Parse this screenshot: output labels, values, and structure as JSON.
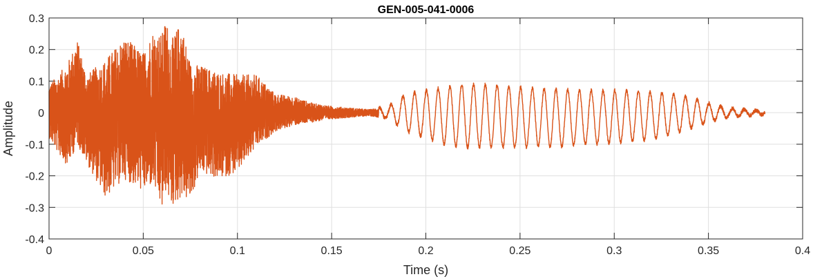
{
  "chart_data": {
    "type": "line",
    "title": "GEN-005-041-0006",
    "xlabel": "Time (s)",
    "ylabel": "Amplitude",
    "xlim": [
      0,
      0.4
    ],
    "ylim": [
      -0.4,
      0.3
    ],
    "xticks": [
      0,
      0.05,
      0.1,
      0.15,
      0.2,
      0.25,
      0.3,
      0.35,
      0.4
    ],
    "xtick_labels": [
      "0",
      "0.05",
      "0.1",
      "0.15",
      "0.2",
      "0.25",
      "0.3",
      "0.35",
      "0.4"
    ],
    "yticks": [
      -0.4,
      -0.3,
      -0.2,
      -0.1,
      0,
      0.1,
      0.2,
      0.3
    ],
    "ytick_labels": [
      "-0.4",
      "-0.3",
      "-0.2",
      "-0.1",
      "0",
      "0.1",
      "0.2",
      "0.3"
    ],
    "grid": true,
    "series": [
      {
        "color": "#d95319",
        "duration_s": 0.38,
        "envelope": {
          "t": [
            0,
            0.005,
            0.01,
            0.015,
            0.02,
            0.03,
            0.04,
            0.05,
            0.055,
            0.06,
            0.062,
            0.065,
            0.07,
            0.075,
            0.08,
            0.09,
            0.1,
            0.11,
            0.12,
            0.13,
            0.14,
            0.15,
            0.16,
            0.17,
            0.18,
            0.185,
            0.19,
            0.2,
            0.21,
            0.22,
            0.23,
            0.24,
            0.25,
            0.26,
            0.27,
            0.28,
            0.29,
            0.3,
            0.31,
            0.32,
            0.33,
            0.34,
            0.35,
            0.36,
            0.37,
            0.38
          ],
          "max": [
            0.09,
            0.12,
            0.16,
            0.23,
            0.12,
            0.17,
            0.24,
            0.19,
            0.26,
            0.25,
            0.3,
            0.23,
            0.29,
            0.16,
            0.15,
            0.13,
            0.12,
            0.12,
            0.06,
            0.05,
            0.03,
            0.02,
            0.015,
            0.01,
            0.02,
            0.04,
            0.06,
            0.07,
            0.08,
            0.09,
            0.09,
            0.085,
            0.08,
            0.075,
            0.075,
            0.07,
            0.07,
            0.07,
            0.07,
            0.065,
            0.06,
            0.05,
            0.03,
            0.015,
            0.01,
            0.005
          ],
          "min": [
            -0.08,
            -0.13,
            -0.17,
            -0.1,
            -0.16,
            -0.27,
            -0.21,
            -0.25,
            -0.23,
            -0.31,
            -0.25,
            -0.3,
            -0.27,
            -0.28,
            -0.19,
            -0.21,
            -0.19,
            -0.11,
            -0.06,
            -0.04,
            -0.03,
            -0.02,
            -0.015,
            -0.01,
            -0.02,
            -0.04,
            -0.06,
            -0.08,
            -0.1,
            -0.11,
            -0.11,
            -0.11,
            -0.11,
            -0.105,
            -0.11,
            -0.1,
            -0.1,
            -0.095,
            -0.09,
            -0.085,
            -0.07,
            -0.05,
            -0.03,
            -0.015,
            -0.01,
            -0.005
          ]
        },
        "tonal_segment": {
          "start_s": 0.18,
          "frequency_hz": 160
        }
      }
    ]
  }
}
